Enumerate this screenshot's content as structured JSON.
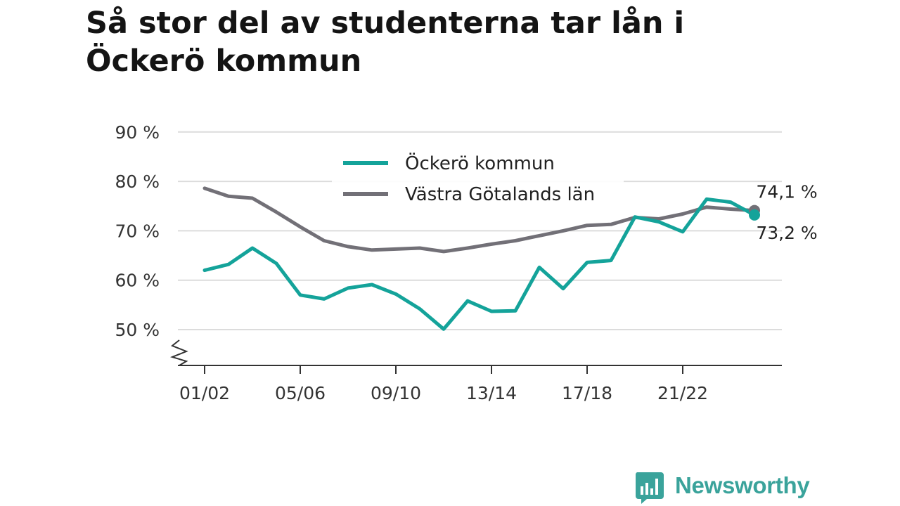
{
  "chart_data": {
    "type": "line",
    "title": "Så stor del av studenterna tar lån i Öckerö kommun",
    "x": [
      "01/02",
      "02/03",
      "03/04",
      "04/05",
      "05/06",
      "06/07",
      "07/08",
      "08/09",
      "09/10",
      "10/11",
      "11/12",
      "12/13",
      "13/14",
      "14/15",
      "15/16",
      "16/17",
      "17/18",
      "18/19",
      "19/20",
      "20/21",
      "21/22",
      "22/23",
      "23/24",
      "24/25"
    ],
    "x_tick_labels": [
      "01/02",
      "05/06",
      "09/10",
      "13/14",
      "17/18",
      "21/22"
    ],
    "ylim": [
      45,
      90
    ],
    "y_ticks": [
      50,
      60,
      70,
      80,
      90
    ],
    "y_tick_labels": [
      "50 %",
      "60 %",
      "70 %",
      "80 %",
      "90 %"
    ],
    "axis_break": true,
    "grid": "horizontal",
    "legend_position": "top-center",
    "series": [
      {
        "name": "Öckerö kommun",
        "color": "#14a39a",
        "values": [
          62.0,
          63.2,
          66.5,
          63.4,
          57.0,
          56.2,
          58.4,
          59.1,
          57.2,
          54.2,
          50.1,
          55.8,
          53.7,
          53.8,
          62.6,
          58.3,
          63.6,
          64.0,
          72.8,
          71.8,
          69.8,
          76.4,
          75.8,
          73.2
        ],
        "end_label": "73,2 %"
      },
      {
        "name": "Västra Götalands län",
        "color": "#727077",
        "values": [
          78.6,
          77.0,
          76.6,
          73.8,
          70.8,
          68.0,
          66.8,
          66.1,
          66.3,
          66.5,
          65.8,
          66.5,
          67.3,
          68.0,
          69.0,
          70.0,
          71.1,
          71.3,
          72.7,
          72.4,
          73.4,
          74.8,
          74.4,
          74.1
        ],
        "end_label": "74,1 %"
      }
    ]
  },
  "brand": {
    "name": "Newsworthy",
    "color": "#3aa39b"
  }
}
